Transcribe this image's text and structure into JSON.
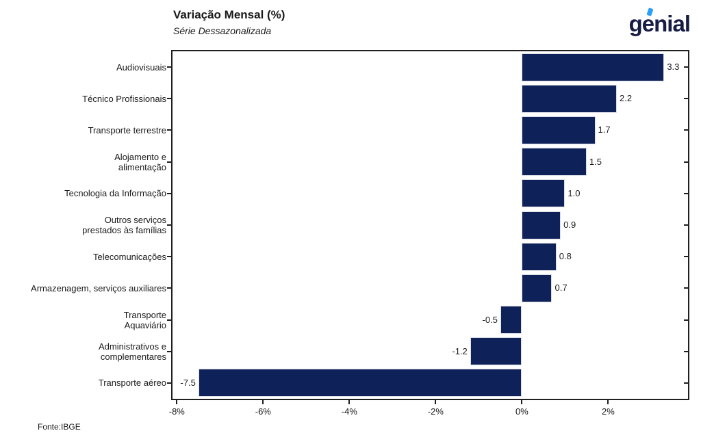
{
  "branding": {
    "logo_text": "genial",
    "logo_color": "#171c45",
    "logo_accent_color": "#2b9ff5"
  },
  "chart_data": {
    "type": "bar",
    "orientation": "horizontal",
    "title": "Variação Mensal (%)",
    "subtitle": "Série Dessazonalizada",
    "source": "Fonte:IBGE",
    "categories": [
      "Audiovisuais",
      "Técnico Profissionais",
      "Transporte terrestre",
      "Alojamento e\nalimentação",
      "Tecnologia da Informação",
      "Outros serviços\nprestados às famílias",
      "Telecomunicações",
      "Armazenagem, serviços auxiliares",
      "Transporte\nAquaviário",
      "Administrativos e\ncomplementares",
      "Transporte aéreo"
    ],
    "values": [
      3.3,
      2.2,
      1.7,
      1.5,
      1.0,
      0.9,
      0.8,
      0.7,
      -0.5,
      -1.2,
      -7.5
    ],
    "value_labels": [
      "3.3",
      "2.2",
      "1.7",
      "1.5",
      "1.0",
      "0.9",
      "0.8",
      "0.7",
      "-0.5",
      "-1.2",
      "-7.5"
    ],
    "xlim": [
      -8.1,
      3.85
    ],
    "xticks": [
      -8,
      -6,
      -4,
      -2,
      0,
      2
    ],
    "xtick_labels": [
      "-8%",
      "-6%",
      "-4%",
      "-2%",
      "0%",
      "2%"
    ],
    "bar_color": "#0e2158",
    "axis_color": "#1f1f1f",
    "grid": false,
    "legend": null
  }
}
